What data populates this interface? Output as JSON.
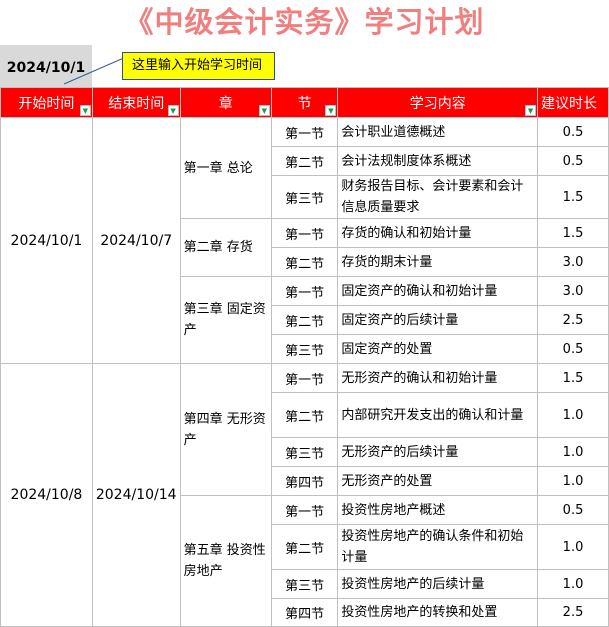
{
  "title": "《中级会计实务》学习计划",
  "start_date": "2024/10/1",
  "note": "这里输入开始学习时间",
  "colors": {
    "header_bg": "#ff0000",
    "title": "#f08080",
    "note_bg": "#ffff00"
  },
  "headers": [
    "开始时间",
    "结束时间",
    "章",
    "节",
    "学习内容",
    "建议时长"
  ],
  "groups": [
    {
      "start": "2024/10/1",
      "end": "2024/10/7"
    },
    {
      "start": "2024/10/8",
      "end": "2024/10/14"
    }
  ],
  "chapters": [
    "第一章 总论",
    "第二章 存货",
    "第三章 固定资产",
    "第四章 无形资产",
    "第五章 投资性房地产"
  ],
  "rows": [
    {
      "section": "第一节",
      "content": "会计职业道德概述",
      "hours": "0.5"
    },
    {
      "section": "第二节",
      "content": "会计法规制度体系概述",
      "hours": "0.5"
    },
    {
      "section": "第三节",
      "content": "财务报告目标、会计要素和会计信息质量要求",
      "hours": "1.5"
    },
    {
      "section": "第一节",
      "content": "存货的确认和初始计量",
      "hours": "1.5"
    },
    {
      "section": "第二节",
      "content": "存货的期末计量",
      "hours": "3.0"
    },
    {
      "section": "第一节",
      "content": "固定资产的确认和初始计量",
      "hours": "3.0"
    },
    {
      "section": "第二节",
      "content": "固定资产的后续计量",
      "hours": "2.5"
    },
    {
      "section": "第三节",
      "content": "固定资产的处置",
      "hours": "0.5"
    },
    {
      "section": "第一节",
      "content": "无形资产的确认和初始计量",
      "hours": "1.5"
    },
    {
      "section": "第二节",
      "content": "内部研究开发支出的确认和计量",
      "hours": "1.0"
    },
    {
      "section": "第三节",
      "content": "无形资产的后续计量",
      "hours": "1.0"
    },
    {
      "section": "第四节",
      "content": "无形资产的处置",
      "hours": "1.0"
    },
    {
      "section": "第一节",
      "content": "投资性房地产概述",
      "hours": "0.5"
    },
    {
      "section": "第二节",
      "content": "投资性房地产的确认条件和初始计量",
      "hours": "1.0"
    },
    {
      "section": "第三节",
      "content": "投资性房地产的后续计量",
      "hours": "1.0"
    },
    {
      "section": "第四节",
      "content": "投资性房地产的转换和处置",
      "hours": "2.5"
    }
  ]
}
